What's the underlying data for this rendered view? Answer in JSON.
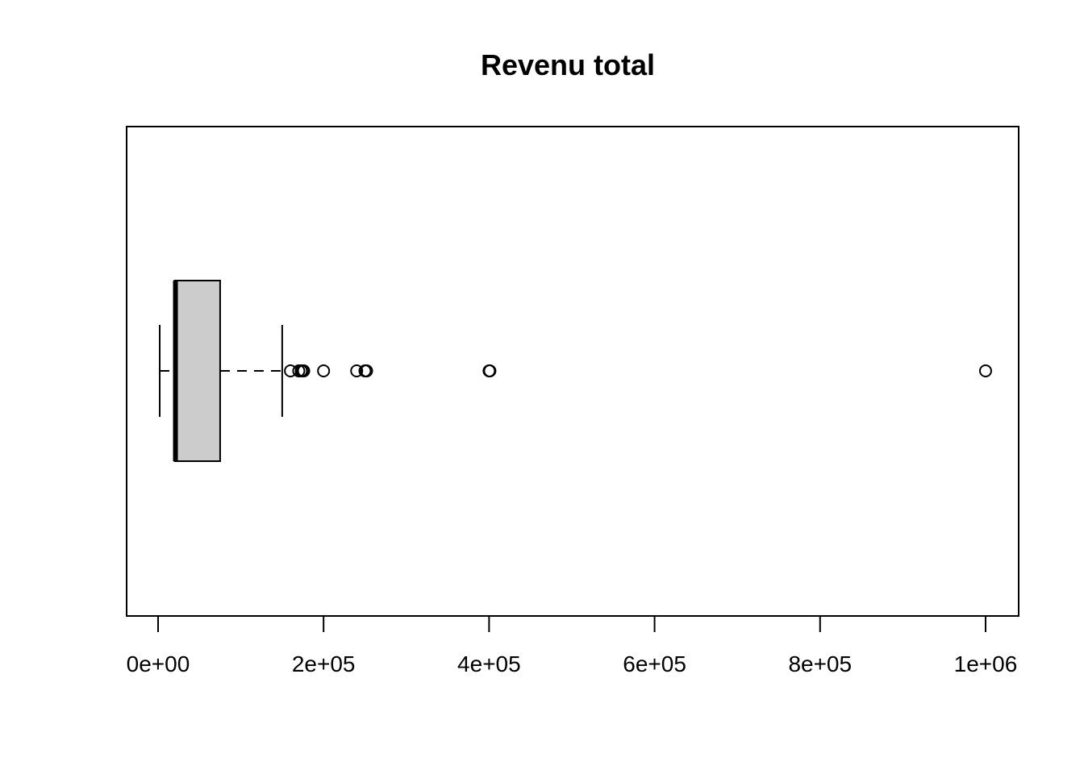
{
  "chart_data": {
    "type": "boxplot",
    "orientation": "horizontal",
    "title": "Revenu total",
    "xlabel": "",
    "ylabel": "",
    "xlim": [
      -38000,
      1040000
    ],
    "ticks": [
      {
        "value": 0,
        "label": "0e+00"
      },
      {
        "value": 200000,
        "label": "2e+05"
      },
      {
        "value": 400000,
        "label": "4e+05"
      },
      {
        "value": 600000,
        "label": "6e+05"
      },
      {
        "value": 800000,
        "label": "8e+05"
      },
      {
        "value": 1000000,
        "label": "1e+06"
      }
    ],
    "box": {
      "whisker_low": 2000,
      "q1": 20000,
      "median": 21000,
      "q3": 75000,
      "whisker_high": 150000
    },
    "outliers": [
      160000,
      170000,
      173000,
      175000,
      176000,
      200000,
      240000,
      250000,
      252000,
      400000,
      401000,
      1000000
    ],
    "grid": false,
    "colors": {
      "box_fill": "#cccccc",
      "stroke": "#000000"
    }
  }
}
